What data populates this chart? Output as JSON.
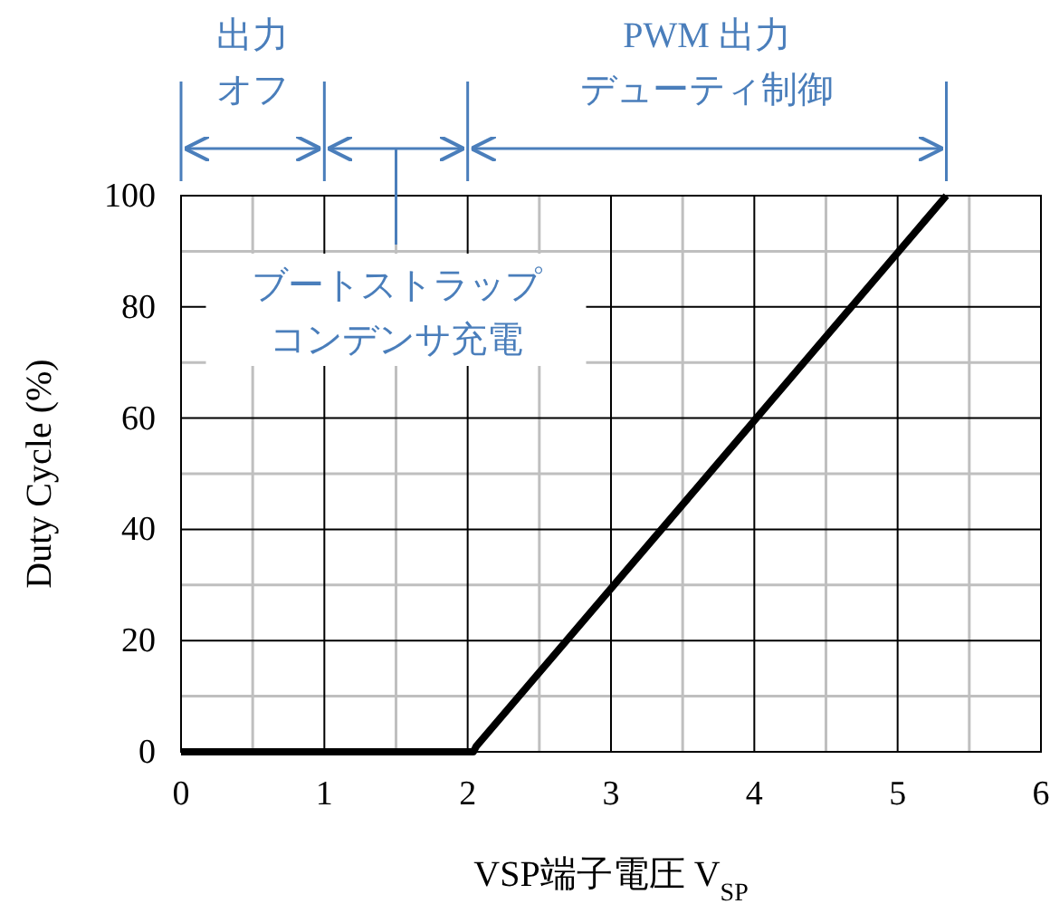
{
  "chart_data": {
    "type": "line",
    "xlabel": "VSP端子電圧 V$_{SP}$",
    "ylabel": "Duty Cycle (%)",
    "x": [
      0,
      2.04,
      2.06,
      5.34
    ],
    "series": [
      {
        "color": "#000000",
        "values": [
          0,
          0,
          1,
          100
        ]
      }
    ],
    "xlim": [
      0,
      6
    ],
    "xticks": [
      0,
      1,
      2,
      3,
      4,
      5,
      6
    ],
    "ylim": [
      0,
      100
    ],
    "yticks": [
      0,
      20,
      40,
      60,
      80,
      100
    ],
    "grid": true,
    "marker": "none",
    "line_style": "solid",
    "annotations": [
      "出力",
      "オフ",
      "ブートストラップ",
      "コンデンサ充電",
      "PWM 出力",
      "デューティ制御"
    ]
  }
}
